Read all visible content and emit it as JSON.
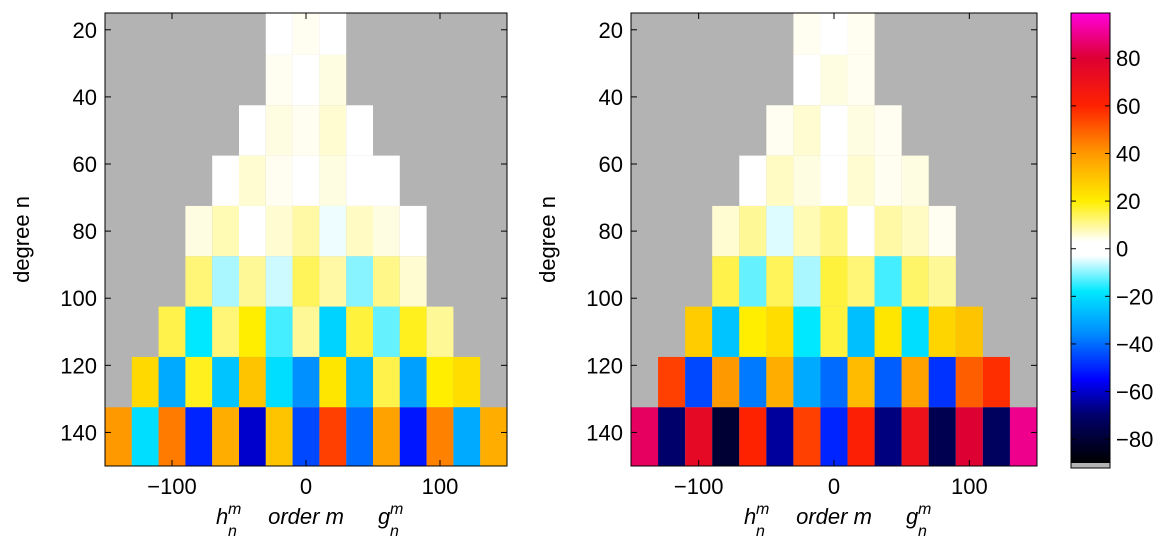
{
  "chart_data": [
    {
      "type": "heatmap",
      "ylabel": "degree n",
      "xlabel": "order m",
      "xlabel_left": {
        "base": "h",
        "sup": "m",
        "sub": "n"
      },
      "xlabel_right": {
        "base": "g",
        "sup": "m",
        "sub": "n"
      },
      "xlim": [
        -150,
        150
      ],
      "ylim": [
        15,
        150
      ],
      "y_reversed": true,
      "background": "#b3b3b3",
      "xticks": [
        {
          "value": -100,
          "label": "−100"
        },
        0,
        100
      ],
      "yticks": [
        20,
        40,
        60,
        80,
        100,
        120,
        140
      ],
      "x": [
        -140,
        -120,
        -100,
        -80,
        -60,
        -40,
        -20,
        0,
        20,
        40,
        60,
        80,
        100,
        120,
        140
      ],
      "y": [
        20,
        35,
        50,
        65,
        80,
        95,
        110,
        125,
        140
      ],
      "values": [
        [
          null,
          null,
          null,
          null,
          null,
          null,
          3,
          4,
          3,
          null,
          null,
          null,
          null,
          null,
          null
        ],
        [
          null,
          null,
          null,
          null,
          null,
          null,
          4,
          3,
          5,
          null,
          null,
          null,
          null,
          null,
          null
        ],
        [
          null,
          null,
          null,
          null,
          null,
          2,
          5,
          4,
          6,
          3,
          null,
          null,
          null,
          null,
          null
        ],
        [
          null,
          null,
          null,
          null,
          1,
          6,
          4,
          -2,
          5,
          3,
          2,
          null,
          null,
          null,
          null
        ],
        [
          null,
          null,
          null,
          5,
          8,
          -3,
          6,
          9,
          -4,
          7,
          5,
          3,
          null,
          null,
          null
        ],
        [
          null,
          null,
          null,
          12,
          -8,
          10,
          -6,
          14,
          9,
          -10,
          11,
          6,
          null,
          null,
          null
        ],
        [
          null,
          null,
          15,
          -18,
          12,
          20,
          -14,
          10,
          -22,
          16,
          -12,
          18,
          10,
          null,
          null
        ],
        [
          null,
          25,
          -30,
          18,
          -25,
          30,
          -20,
          -35,
          22,
          -28,
          15,
          -32,
          20,
          24,
          null
        ],
        [
          40,
          -20,
          45,
          -50,
          35,
          -60,
          30,
          -45,
          55,
          -40,
          38,
          -52,
          44,
          -30,
          35
        ]
      ]
    },
    {
      "type": "heatmap",
      "ylabel": "degree n",
      "xlabel": "order m",
      "xlabel_left": {
        "base": "h",
        "sup": "m",
        "sub": "n"
      },
      "xlabel_right": {
        "base": "g",
        "sup": "m",
        "sub": "n"
      },
      "xlim": [
        -150,
        150
      ],
      "ylim": [
        15,
        150
      ],
      "y_reversed": true,
      "background": "#b3b3b3",
      "xticks": [
        {
          "value": -100,
          "label": "−100"
        },
        0,
        100
      ],
      "yticks": [
        20,
        40,
        60,
        80,
        100,
        120,
        140
      ],
      "x": [
        -140,
        -120,
        -100,
        -80,
        -60,
        -40,
        -20,
        0,
        20,
        40,
        60,
        80,
        100,
        120,
        140
      ],
      "y": [
        20,
        35,
        50,
        65,
        80,
        95,
        110,
        125,
        140
      ],
      "values": [
        [
          null,
          null,
          null,
          null,
          null,
          null,
          4,
          3,
          4,
          null,
          null,
          null,
          null,
          null,
          null
        ],
        [
          null,
          null,
          null,
          null,
          null,
          null,
          3,
          5,
          4,
          null,
          null,
          null,
          null,
          null,
          null
        ],
        [
          null,
          null,
          null,
          null,
          null,
          4,
          6,
          3,
          5,
          4,
          null,
          null,
          null,
          null,
          null
        ],
        [
          null,
          null,
          null,
          null,
          3,
          7,
          5,
          2,
          6,
          4,
          5,
          null,
          null,
          null,
          null
        ],
        [
          null,
          null,
          null,
          6,
          10,
          -5,
          8,
          11,
          -3,
          9,
          7,
          4,
          null,
          null,
          null
        ],
        [
          null,
          null,
          null,
          15,
          -12,
          14,
          -8,
          16,
          12,
          -14,
          13,
          10,
          null,
          null,
          null
        ],
        [
          null,
          null,
          28,
          -25,
          20,
          24,
          -18,
          16,
          -26,
          22,
          -20,
          26,
          30,
          null,
          null
        ],
        [
          null,
          55,
          -45,
          40,
          -38,
          35,
          -30,
          -40,
          32,
          -42,
          38,
          -48,
          50,
          58,
          null
        ],
        [
          85,
          -70,
          75,
          -80,
          60,
          -65,
          55,
          -50,
          62,
          -68,
          70,
          -75,
          80,
          -72,
          90
        ]
      ]
    },
    {
      "type": "colorbar",
      "ylim": [
        -90,
        99
      ],
      "yticks": [
        {
          "value": -80,
          "label": "−80"
        },
        {
          "value": -60,
          "label": "−60"
        },
        {
          "value": -40,
          "label": "−40"
        },
        {
          "value": -20,
          "label": "−20"
        },
        0,
        20,
        40,
        60,
        80
      ],
      "colormap": [
        {
          "value": -90,
          "color": "#000000"
        },
        {
          "value": -70,
          "color": "#00006a"
        },
        {
          "value": -55,
          "color": "#0000ff"
        },
        {
          "value": -35,
          "color": "#0090ff"
        },
        {
          "value": -18,
          "color": "#00e8ff"
        },
        {
          "value": -3,
          "color": "#ffffff"
        },
        {
          "value": 3,
          "color": "#ffffff"
        },
        {
          "value": 20,
          "color": "#ffee00"
        },
        {
          "value": 40,
          "color": "#ff9900"
        },
        {
          "value": 60,
          "color": "#ff2200"
        },
        {
          "value": 80,
          "color": "#dd0033"
        },
        {
          "value": 99,
          "color": "#ff00dd"
        }
      ]
    }
  ]
}
